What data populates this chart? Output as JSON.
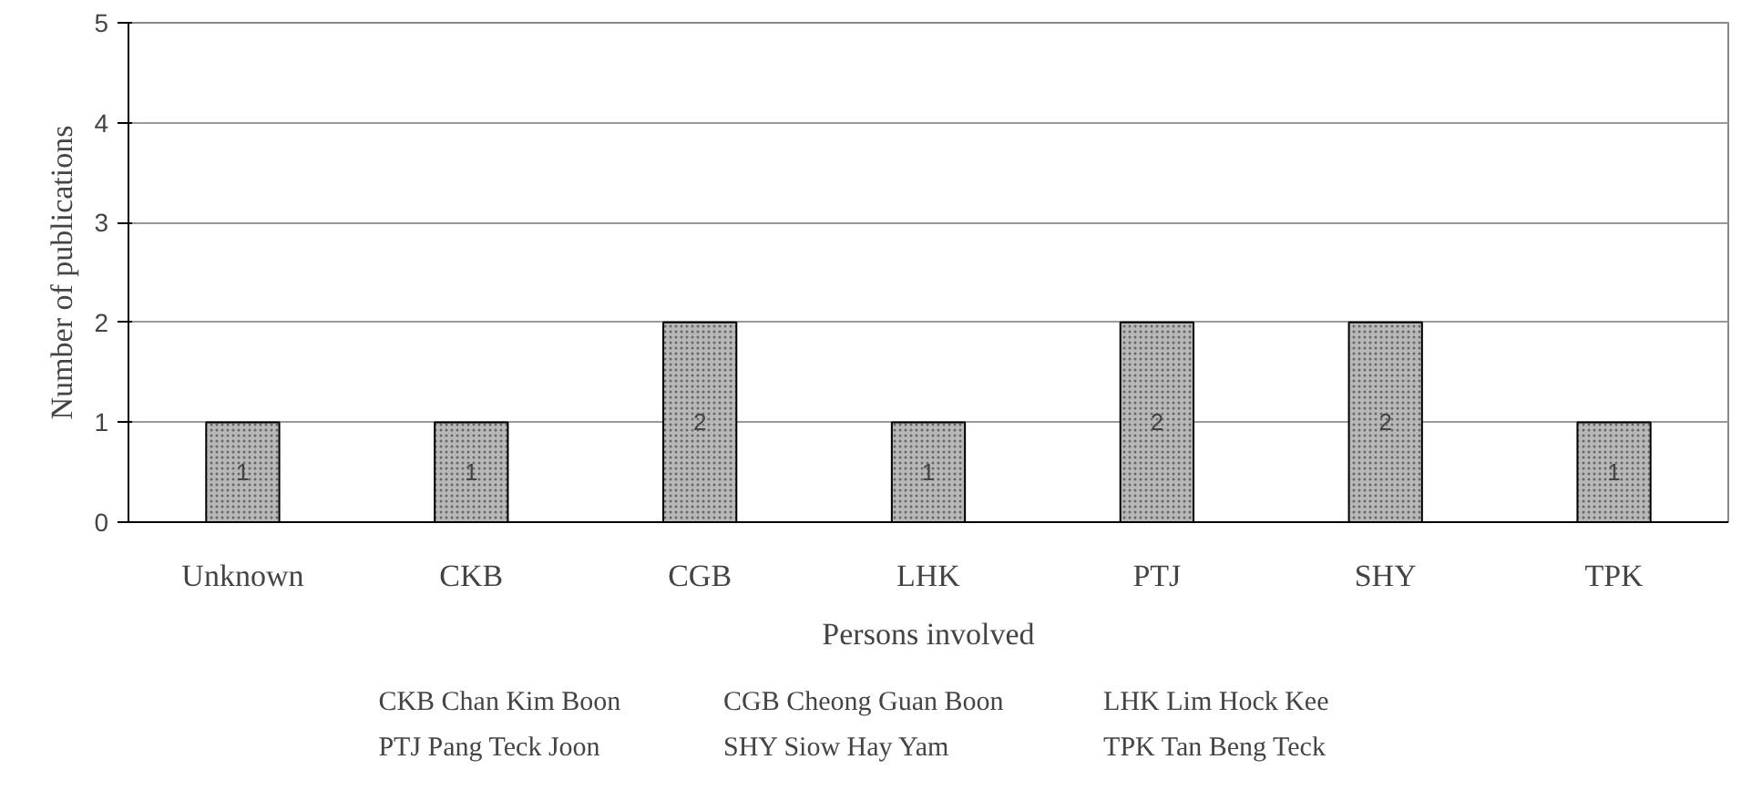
{
  "chart_data": {
    "type": "bar",
    "xlabel": "Persons involved",
    "ylabel": "Number of publications",
    "categories": [
      "Unknown",
      "CKB",
      "CGB",
      "LHK",
      "PTJ",
      "SHY",
      "TPK"
    ],
    "values": [
      1,
      1,
      2,
      1,
      2,
      2,
      1
    ],
    "color": "#b8b8b8",
    "ylim": [
      0,
      5
    ],
    "yticks": [
      0,
      1,
      2,
      3,
      4,
      5
    ],
    "grid": "y",
    "data_labels": true,
    "annotations": [
      "CKB   Chan Kim Boon",
      "CGB  Cheong Guan Boon",
      "LHK   Lim Hock Kee",
      "PTJ   Pang Teck Joon",
      "SHY Siow Hay Yam",
      "TPK  Tan Beng Teck"
    ]
  }
}
